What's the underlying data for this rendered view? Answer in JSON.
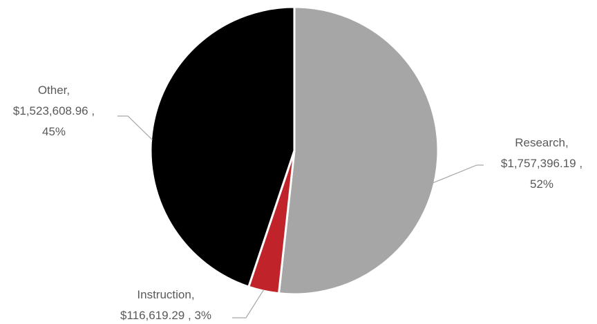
{
  "chart_data": {
    "type": "pie",
    "title": "",
    "slices": [
      {
        "category": "Research",
        "value": 1757396.19,
        "display_value": "$1,757,396.19",
        "percent": "52%",
        "color": "#a6a6a6"
      },
      {
        "category": "Instruction",
        "value": 116619.29,
        "display_value": "$116,619.29",
        "percent": "3%",
        "color": "#c0242a"
      },
      {
        "category": "Other",
        "value": 1523608.96,
        "display_value": "$1,523,608.96",
        "percent": "45%",
        "color": "#000000"
      }
    ],
    "start_angle_deg": 0,
    "direction": "clockwise",
    "legend": "none",
    "data_labels": "outside-with-leader-lines"
  }
}
